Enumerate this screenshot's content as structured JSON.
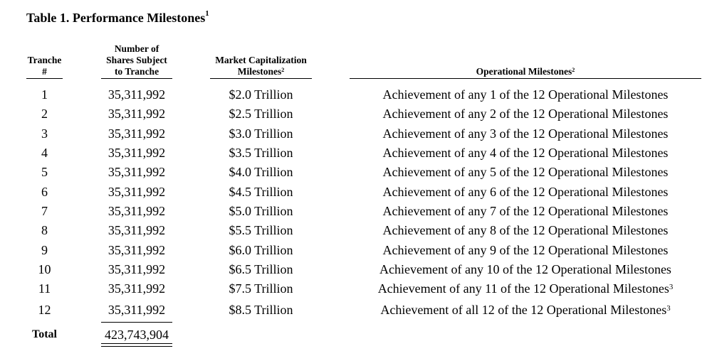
{
  "title": {
    "text": "Table 1. Performance Milestones",
    "footnote": "1"
  },
  "headers": {
    "tranche": [
      "Tranche",
      "#"
    ],
    "shares": [
      "Number of",
      "Shares Subject",
      "to Tranche"
    ],
    "market_cap": {
      "lines": [
        "Market Capitalization",
        "Milestones"
      ],
      "footnote": "2"
    },
    "operational": {
      "text": "Operational Milestones",
      "footnote": "2"
    }
  },
  "rows": [
    {
      "tranche": "1",
      "shares": "35,311,992",
      "market_cap": "$2.0 Trillion",
      "operational": "Achievement of any 1 of the 12 Operational Milestones",
      "footnote": ""
    },
    {
      "tranche": "2",
      "shares": "35,311,992",
      "market_cap": "$2.5 Trillion",
      "operational": "Achievement of any 2 of the 12 Operational Milestones",
      "footnote": ""
    },
    {
      "tranche": "3",
      "shares": "35,311,992",
      "market_cap": "$3.0 Trillion",
      "operational": "Achievement of any 3 of the 12 Operational Milestones",
      "footnote": ""
    },
    {
      "tranche": "4",
      "shares": "35,311,992",
      "market_cap": "$3.5 Trillion",
      "operational": "Achievement of any 4 of the 12 Operational Milestones",
      "footnote": ""
    },
    {
      "tranche": "5",
      "shares": "35,311,992",
      "market_cap": "$4.0 Trillion",
      "operational": "Achievement of any 5 of the 12 Operational Milestones",
      "footnote": ""
    },
    {
      "tranche": "6",
      "shares": "35,311,992",
      "market_cap": "$4.5 Trillion",
      "operational": "Achievement of any 6 of the 12 Operational Milestones",
      "footnote": ""
    },
    {
      "tranche": "7",
      "shares": "35,311,992",
      "market_cap": "$5.0 Trillion",
      "operational": "Achievement of any 7 of the 12 Operational Milestones",
      "footnote": ""
    },
    {
      "tranche": "8",
      "shares": "35,311,992",
      "market_cap": "$5.5 Trillion",
      "operational": "Achievement of any 8 of the 12 Operational Milestones",
      "footnote": ""
    },
    {
      "tranche": "9",
      "shares": "35,311,992",
      "market_cap": "$6.0 Trillion",
      "operational": "Achievement of any 9 of the 12 Operational Milestones",
      "footnote": ""
    },
    {
      "tranche": "10",
      "shares": "35,311,992",
      "market_cap": "$6.5 Trillion",
      "operational": "Achievement of any 10 of the 12 Operational Milestones",
      "footnote": ""
    },
    {
      "tranche": "11",
      "shares": "35,311,992",
      "market_cap": "$7.5 Trillion",
      "operational": "Achievement of any 11 of the 12 Operational Milestones",
      "footnote": "3"
    },
    {
      "tranche": "12",
      "shares": "35,311,992",
      "market_cap": "$8.5 Trillion",
      "operational": "Achievement of all 12 of the 12 Operational Milestones",
      "footnote": "3"
    }
  ],
  "total": {
    "label": "Total",
    "shares": "423,743,904"
  }
}
